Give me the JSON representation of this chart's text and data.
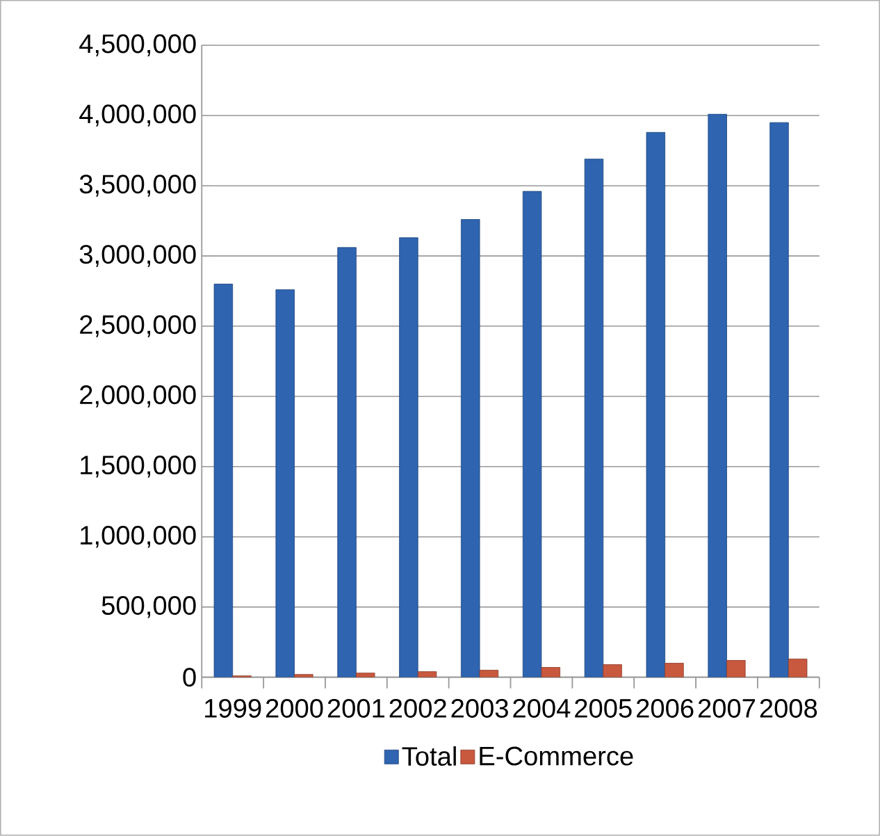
{
  "chart_data": {
    "type": "bar",
    "categories": [
      "1999",
      "2000",
      "2001",
      "2002",
      "2003",
      "2004",
      "2005",
      "2006",
      "2007",
      "2008"
    ],
    "series": [
      {
        "name": "Total",
        "color": "#2e64b0",
        "values": [
          2800000,
          2760000,
          3060000,
          3130000,
          3260000,
          3460000,
          3690000,
          3880000,
          4010000,
          3950000
        ]
      },
      {
        "name": "E-Commerce",
        "color": "#c8583e",
        "values": [
          10000,
          20000,
          30000,
          40000,
          50000,
          70000,
          90000,
          100000,
          120000,
          130000
        ]
      }
    ],
    "ylim": [
      0,
      4500000
    ],
    "yticks": [
      {
        "value": 0,
        "label": "0"
      },
      {
        "value": 500000,
        "label": "500,000"
      },
      {
        "value": 1000000,
        "label": "1,000,000"
      },
      {
        "value": 1500000,
        "label": "1,500,000"
      },
      {
        "value": 2000000,
        "label": "2,000,000"
      },
      {
        "value": 2500000,
        "label": "2,500,000"
      },
      {
        "value": 3000000,
        "label": "3,000,000"
      },
      {
        "value": 3500000,
        "label": "3,500,000"
      },
      {
        "value": 4000000,
        "label": "4,000,000"
      },
      {
        "value": 4500000,
        "label": "4,500,000"
      }
    ],
    "grid": "y",
    "legend": "bottom"
  }
}
